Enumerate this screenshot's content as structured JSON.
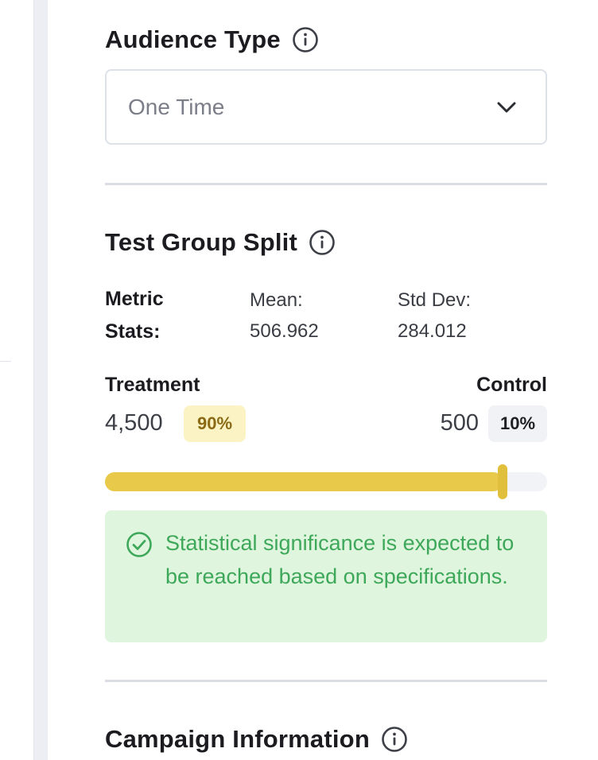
{
  "audience": {
    "title": "Audience Type",
    "select_value": "One Time",
    "info_icon": "info-icon",
    "chevron_icon": "chevron-down-icon"
  },
  "test_group": {
    "title": "Test Group Split",
    "metric_label": "Metric Stats:",
    "mean_label": "Mean:",
    "mean_value": "506.962",
    "std_label": "Std Dev:",
    "std_value": "284.012",
    "treatment_label": "Treatment",
    "treatment_count": "4,500",
    "treatment_pct": "90%",
    "control_label": "Control",
    "control_count": "500",
    "control_pct": "10%",
    "split_fraction": 0.9,
    "alert_text": "Statistical significance is expected to be reached based on specifications.",
    "alert_icon": "check-circle-icon"
  },
  "campaign": {
    "title": "Campaign Information"
  },
  "colors": {
    "slider_fill": "#e8c94a",
    "alert_bg": "#e0f5de",
    "alert_text": "#3ea85a",
    "treatment_badge_bg": "#fbf3c4"
  }
}
